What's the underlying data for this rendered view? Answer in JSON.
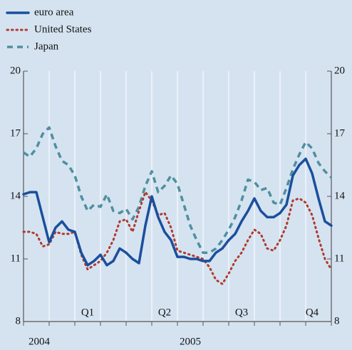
{
  "chart_data": {
    "type": "line",
    "x": [
      0,
      1,
      2,
      3,
      4,
      5,
      6,
      7,
      8,
      9,
      10,
      11,
      12,
      13,
      14,
      15,
      16,
      17,
      18,
      19,
      20,
      21,
      22,
      23,
      24,
      25,
      26,
      27,
      28,
      29,
      30,
      31,
      32,
      33,
      34,
      35,
      36,
      37,
      38,
      39,
      40,
      41,
      42,
      43,
      44,
      45,
      46,
      47,
      48
    ],
    "xlim": [
      0,
      48
    ],
    "xticks": [
      0,
      4,
      8,
      12,
      16,
      20,
      24,
      28,
      32,
      36,
      40,
      44,
      48
    ],
    "quarters": [
      "Q1",
      "Q2",
      "Q3",
      "Q4"
    ],
    "years": [
      "2004",
      "2005"
    ],
    "ylim": [
      8,
      20
    ],
    "yticks": [
      8,
      11,
      14,
      17,
      20
    ],
    "grid": true,
    "legend": "top-left",
    "series": [
      {
        "name": "euro area",
        "color": "#1b4f9c",
        "style": "solid",
        "values": [
          14.1,
          14.2,
          14.2,
          13.0,
          11.8,
          12.5,
          12.8,
          12.4,
          12.3,
          11.3,
          10.7,
          10.9,
          11.2,
          10.7,
          10.9,
          11.5,
          11.3,
          11.0,
          10.8,
          12.6,
          14.0,
          13.0,
          12.3,
          11.9,
          11.1,
          11.1,
          11.0,
          11.0,
          10.9,
          10.9,
          11.3,
          11.5,
          11.9,
          12.2,
          12.8,
          13.3,
          13.9,
          13.3,
          13.0,
          13.0,
          13.2,
          13.6,
          15.0,
          15.5,
          15.8,
          15.1,
          13.9,
          12.8,
          12.6
        ]
      },
      {
        "name": "United States",
        "color": "#b03a2e",
        "style": "dotted",
        "values": [
          12.3,
          12.3,
          12.2,
          11.6,
          11.7,
          12.3,
          12.2,
          12.2,
          12.3,
          11.2,
          10.5,
          10.7,
          10.9,
          11.3,
          11.9,
          12.8,
          12.9,
          12.3,
          13.3,
          14.2,
          13.8,
          13.1,
          13.2,
          12.5,
          11.4,
          11.3,
          11.2,
          11.1,
          11.0,
          10.6,
          10.0,
          9.8,
          10.3,
          10.9,
          11.3,
          11.9,
          12.4,
          12.2,
          11.5,
          11.4,
          11.9,
          12.6,
          13.8,
          13.9,
          13.7,
          13.1,
          12.0,
          11.0,
          10.5
        ]
      },
      {
        "name": "Japan",
        "color": "#4f8fa0",
        "style": "dashed",
        "values": [
          16.1,
          15.9,
          16.3,
          17.0,
          17.3,
          16.4,
          15.7,
          15.5,
          15.0,
          14.0,
          13.3,
          13.6,
          13.5,
          14.1,
          13.3,
          13.2,
          13.4,
          12.9,
          13.5,
          14.5,
          15.2,
          14.2,
          14.5,
          15.0,
          14.6,
          13.6,
          12.6,
          11.9,
          11.3,
          11.3,
          11.5,
          11.9,
          12.4,
          13.0,
          13.8,
          14.8,
          14.7,
          14.3,
          14.4,
          13.7,
          13.6,
          14.4,
          15.3,
          16.0,
          16.6,
          16.3,
          15.6,
          15.2,
          14.9
        ]
      }
    ]
  }
}
